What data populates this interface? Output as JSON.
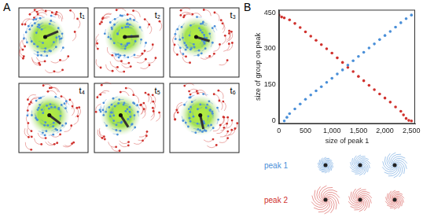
{
  "panel_labels": [
    "A",
    "B"
  ],
  "snapshots": [
    "t₁",
    "t₂",
    "t₃",
    "t₄",
    "t₅",
    "t₆"
  ],
  "chart_data": {
    "type": "scatter",
    "xlabel": "size of peak 1",
    "ylabel": "size of group on peak",
    "xlim": [
      0,
      2570
    ],
    "ylim": [
      -12,
      462
    ],
    "xticks": [
      0,
      500,
      1000,
      1500,
      2000,
      2500
    ],
    "yticks": [
      0,
      150,
      300,
      450
    ],
    "grid": false,
    "marker": "circle",
    "series": [
      {
        "color": "#4a8fd8",
        "x": [
          100,
          150,
          200,
          300,
          400,
          500,
          600,
          700,
          800,
          900,
          1000,
          1100,
          1200,
          1300,
          1400,
          1500,
          1600,
          1700,
          1800,
          1900,
          2000,
          2100,
          2200,
          2300,
          2400,
          2500
        ],
        "values": [
          0,
          15,
          30,
          50,
          70,
          90,
          108,
          125,
          142,
          160,
          177,
          195,
          212,
          232,
          250,
          268,
          285,
          303,
          320,
          338,
          355,
          372,
          390,
          408,
          425,
          440
        ]
      },
      {
        "color": "#d0312d",
        "x": [
          0,
          50,
          100,
          200,
          300,
          400,
          500,
          600,
          700,
          800,
          900,
          1000,
          1100,
          1200,
          1300,
          1400,
          1500,
          1600,
          1700,
          1800,
          1900,
          2000,
          2100,
          2200,
          2300,
          2350,
          2400,
          2450,
          2500
        ],
        "values": [
          440,
          432,
          428,
          420,
          405,
          388,
          370,
          352,
          335,
          317,
          300,
          282,
          262,
          243,
          222,
          205,
          185,
          167,
          148,
          130,
          112,
          95,
          78,
          58,
          40,
          25,
          10,
          2,
          0
        ]
      }
    ]
  },
  "thumbnails": [
    {
      "label": "peak 1",
      "color": "#4a8fd8"
    },
    {
      "label": "peak 2",
      "color": "#d0312d"
    }
  ]
}
